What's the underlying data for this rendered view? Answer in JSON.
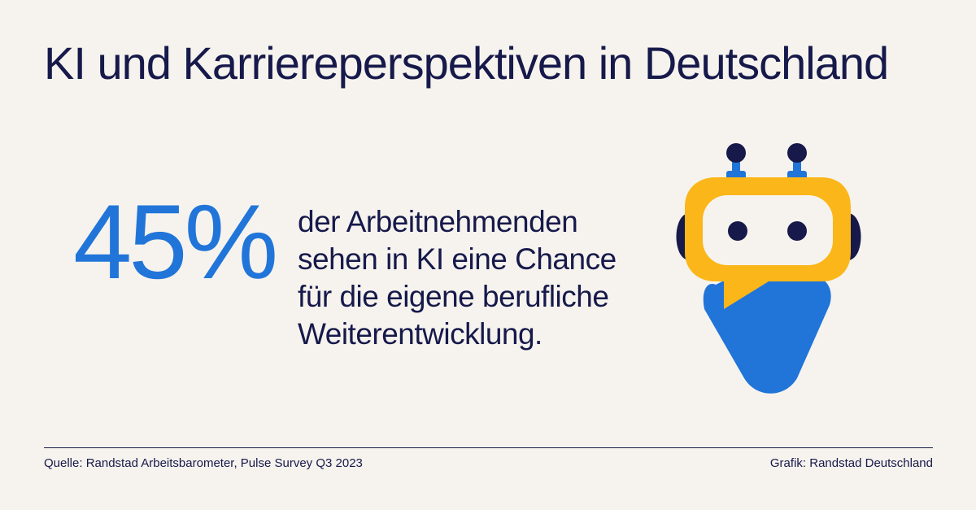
{
  "header": {
    "title": "KI und Karriereperspektiven in Deutschland"
  },
  "stat": {
    "value": "45%",
    "lines": [
      "der Arbeitnehmenden",
      "sehen in KI eine Chance",
      "für die eigene berufliche",
      "Weiterentwicklung."
    ]
  },
  "illustration": {
    "icon": "robot-icon",
    "colors": {
      "head": "#fbb619",
      "face": "#f6f3ee",
      "body": "#2175d9",
      "dark": "#16194a",
      "antenna_stem": "#2175d9"
    }
  },
  "footer": {
    "source": "Quelle: Randstad Arbeitsbarometer, Pulse Survey Q3 2023",
    "credit": "Grafik: Randstad Deutschland"
  },
  "colors": {
    "background": "#f6f3ee",
    "text": "#16194a",
    "accent": "#2175d9"
  }
}
